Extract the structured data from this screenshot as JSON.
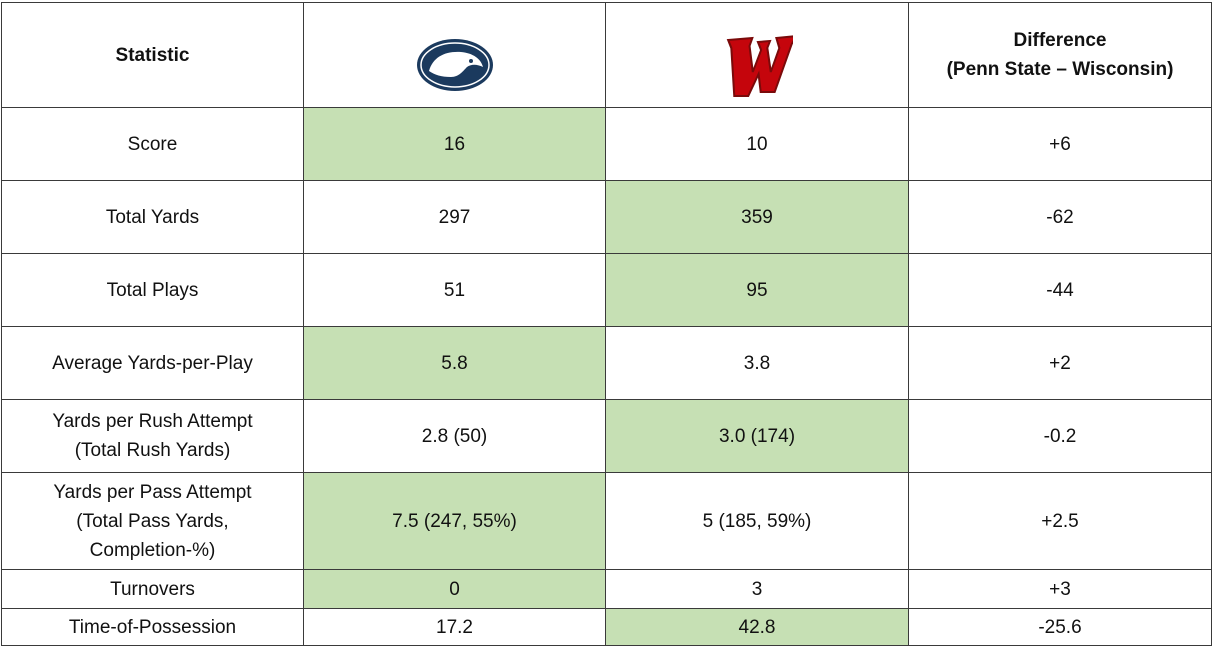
{
  "header": {
    "statistic": "Statistic",
    "difference": "Difference\n(Penn State – Wisconsin)"
  },
  "highlight_color": "#c6e0b4",
  "rows": [
    {
      "cells": [
        "Score",
        "16",
        "10",
        "+6"
      ],
      "highlight": 1
    },
    {
      "cells": [
        "Total Yards",
        "297",
        "359",
        "-62"
      ],
      "highlight": 2
    },
    {
      "cells": [
        "Total Plays",
        "51",
        "95",
        "-44"
      ],
      "highlight": 2
    },
    {
      "cells": [
        "Average Yards-per-Play",
        "5.8",
        "3.8",
        "+2"
      ],
      "highlight": 1
    },
    {
      "cells": [
        "Yards per Rush Attempt\n(Total Rush Yards)",
        "2.8 (50)",
        "3.0 (174)",
        "-0.2"
      ],
      "highlight": 2
    },
    {
      "cells": [
        "Yards per Pass Attempt\n(Total Pass Yards,\nCompletion-%)",
        "7.5 (247, 55%)",
        "5 (185, 59%)",
        "+2.5"
      ],
      "highlight": 1
    },
    {
      "cells": [
        "Turnovers",
        "0",
        "3",
        "+3"
      ],
      "highlight": 1
    },
    {
      "cells": [
        "Time-of-Possession",
        "17.2",
        "42.8",
        "-25.6"
      ],
      "highlight": 2
    }
  ]
}
